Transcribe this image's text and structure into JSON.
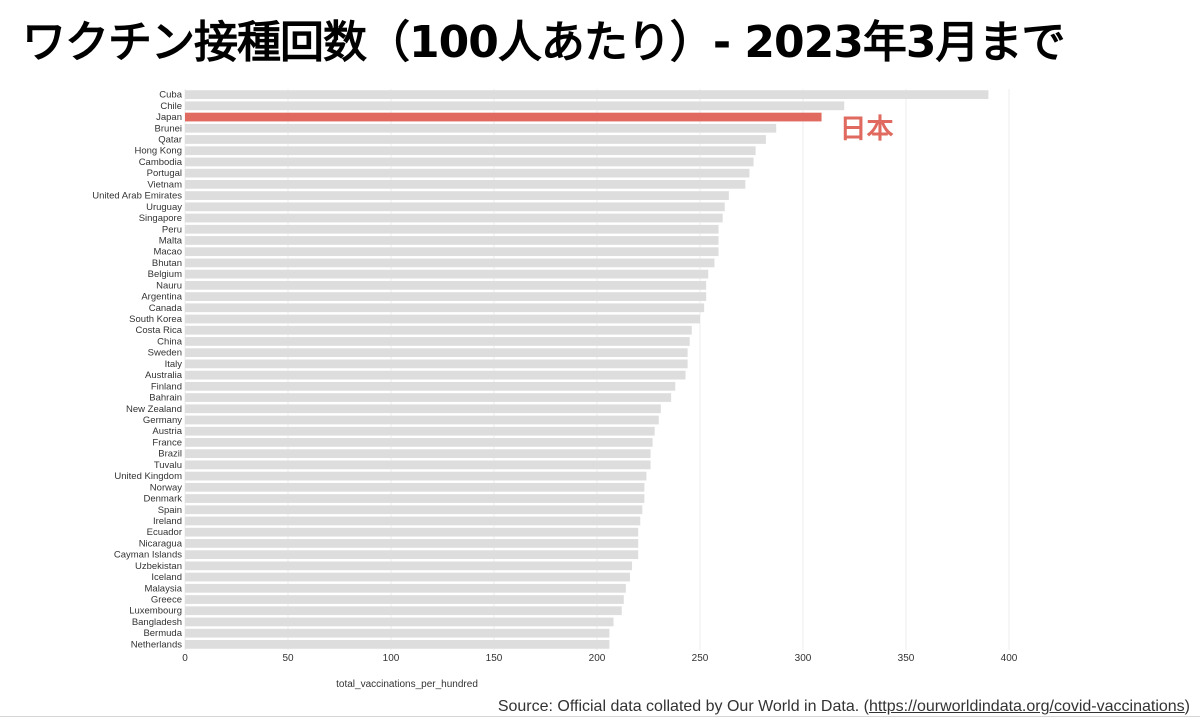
{
  "title": "ワクチン接種回数（100人あたり）- 2023年3月まで",
  "source": {
    "prefix": "Source: Official data collated by Our World in Data. (",
    "link": "https://ourworldindata.org/covid-vaccinations",
    "suffix": ")"
  },
  "colors": {
    "bar": "#dddddd",
    "highlight": "#e06a5f",
    "grid": "#eeeeee",
    "annotation": "#e06a5f"
  },
  "chart_data": {
    "type": "bar",
    "orientation": "horizontal",
    "xlabel": "total_vaccinations_per_hundred",
    "xlim": [
      0,
      400
    ],
    "xticks": [
      0,
      50,
      100,
      150,
      200,
      250,
      300,
      350,
      400
    ],
    "grid": true,
    "highlight": "Japan",
    "annotation": "日本",
    "categories": [
      "Cuba",
      "Chile",
      "Japan",
      "Brunei",
      "Qatar",
      "Hong Kong",
      "Cambodia",
      "Portugal",
      "Vietnam",
      "United Arab Emirates",
      "Uruguay",
      "Singapore",
      "Peru",
      "Malta",
      "Macao",
      "Bhutan",
      "Belgium",
      "Nauru",
      "Argentina",
      "Canada",
      "South Korea",
      "Costa Rica",
      "China",
      "Sweden",
      "Italy",
      "Australia",
      "Finland",
      "Bahrain",
      "New Zealand",
      "Germany",
      "Austria",
      "France",
      "Brazil",
      "Tuvalu",
      "United Kingdom",
      "Norway",
      "Denmark",
      "Spain",
      "Ireland",
      "Ecuador",
      "Nicaragua",
      "Cayman Islands",
      "Uzbekistan",
      "Iceland",
      "Malaysia",
      "Greece",
      "Luxembourg",
      "Bangladesh",
      "Bermuda",
      "Netherlands"
    ],
    "values": [
      390,
      320,
      309,
      287,
      282,
      277,
      276,
      274,
      272,
      264,
      262,
      261,
      259,
      259,
      259,
      257,
      254,
      253,
      253,
      252,
      250,
      246,
      245,
      244,
      244,
      243,
      238,
      236,
      231,
      230,
      228,
      227,
      226,
      226,
      224,
      223,
      223,
      222,
      221,
      220,
      220,
      220,
      217,
      216,
      214,
      213,
      212,
      208,
      206,
      206
    ]
  }
}
